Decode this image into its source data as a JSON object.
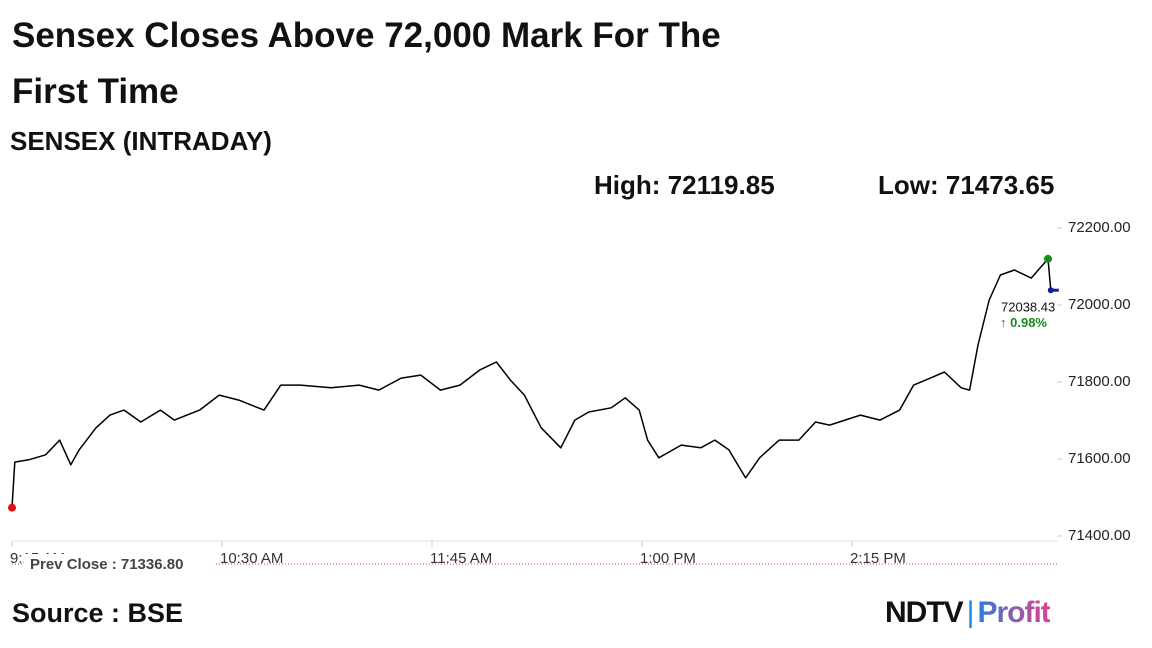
{
  "chart_data": {
    "type": "line",
    "title": "Sensex Closes Above 72,000 Mark For The First Time",
    "subtitle": "SENSEX (INTRADAY)",
    "high_label": "High: 72119.85",
    "low_label": "Low: 71473.65",
    "prev_close_label": "Prev Close : 71336.80",
    "change_label": "0.98%",
    "source": "Source : BSE",
    "logo": {
      "brand": "NDTV",
      "product": "Profit"
    },
    "color": "#000000",
    "start_color": "#e01010",
    "high_color": "#1a8a1a",
    "end_color": "#1020a0",
    "change_color": "#1a8a1a",
    "x": [
      "09:15",
      "09:16",
      "09:21",
      "09:27",
      "09:32",
      "09:36",
      "09:39",
      "09:45",
      "09:50",
      "09:55",
      "10:01",
      "10:08",
      "10:13",
      "10:22",
      "10:29",
      "10:36",
      "10:45",
      "10:51",
      "10:58",
      "11:09",
      "11:19",
      "11:26",
      "11:34",
      "11:41",
      "11:48",
      "11:55",
      "12:02",
      "12:08",
      "12:13",
      "12:18",
      "12:24",
      "12:31",
      "12:36",
      "12:41",
      "12:49",
      "12:54",
      "12:59",
      "13:02",
      "13:06",
      "13:14",
      "13:21",
      "13:26",
      "13:31",
      "13:37",
      "13:42",
      "13:49",
      "13:56",
      "14:02",
      "14:07",
      "14:18",
      "14:25",
      "14:32",
      "14:37",
      "14:43",
      "14:48",
      "14:54",
      "14:57",
      "15:00",
      "15:04",
      "15:08",
      "15:13",
      "15:19",
      "15:25",
      "15:26"
    ],
    "values": [
      71473.65,
      71592,
      71598,
      71611,
      71649,
      71585,
      71624,
      71681,
      71714,
      71727,
      71696,
      71727,
      71701,
      71727,
      71766,
      71753,
      71727,
      71792,
      71792,
      71785,
      71792,
      71779,
      71810,
      71818,
      71779,
      71792,
      71831,
      71852,
      71805,
      71766,
      71681,
      71629,
      71701,
      71722,
      71733,
      71759,
      71727,
      71649,
      71603,
      71636,
      71629,
      71649,
      71624,
      71551,
      71603,
      71649,
      71649,
      71696,
      71688,
      71714,
      71701,
      71727,
      71792,
      71810,
      71826,
      71785,
      71779,
      71896,
      72013,
      72078,
      72091,
      72070,
      72119.85,
      72038.43
    ],
    "xlim": [
      "09:15",
      "15:30"
    ],
    "xticks": [
      {
        "value": "09:15",
        "label": "9:15 AM"
      },
      {
        "value": "10:30",
        "label": "10:30 AM"
      },
      {
        "value": "11:45",
        "label": "11:45 AM"
      },
      {
        "value": "13:00",
        "label": "1:00 PM"
      },
      {
        "value": "14:15",
        "label": "2:15 PM"
      }
    ],
    "ylim": [
      71400,
      72200
    ],
    "yticks": [
      {
        "value": 71400,
        "label": "71400.00"
      },
      {
        "value": 71600,
        "label": "71600.00"
      },
      {
        "value": 71800,
        "label": "71800.00"
      },
      {
        "value": 72000,
        "label": "72000.00"
      },
      {
        "value": 72200,
        "label": "72200.00"
      }
    ],
    "grid": false
  }
}
